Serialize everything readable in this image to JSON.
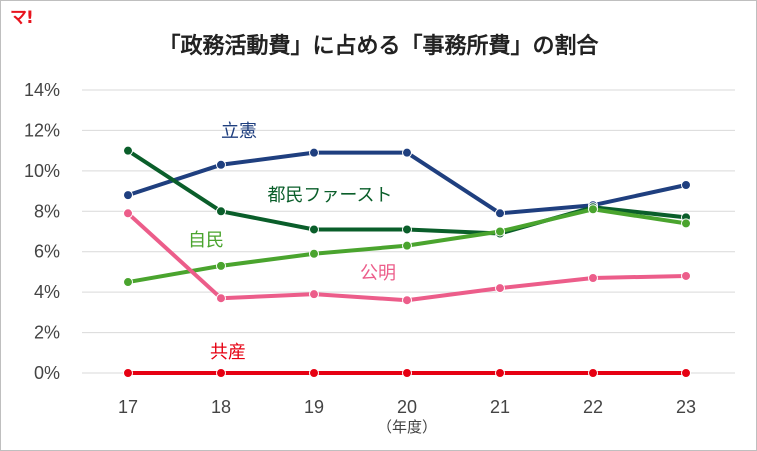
{
  "logo_text": "マ!",
  "chart_data": {
    "type": "line",
    "title": "「政務活動費」に占める「事務所費」の割合",
    "x": [
      "17",
      "18",
      "19",
      "20",
      "21",
      "22",
      "23"
    ],
    "xunit": "（年度）",
    "yticks": [
      "0%",
      "2%",
      "4%",
      "6%",
      "8%",
      "10%",
      "12%",
      "14%"
    ],
    "ylim": [
      0,
      14
    ],
    "grid": "horizontal",
    "series": [
      {
        "name": "立憲",
        "color": "#1f3f7f",
        "values": [
          8.8,
          10.3,
          10.9,
          10.9,
          7.9,
          8.3,
          9.3
        ]
      },
      {
        "name": "都民ファースト",
        "color": "#0a5e2a",
        "values": [
          11.0,
          8.0,
          7.1,
          7.1,
          6.9,
          8.2,
          7.7
        ]
      },
      {
        "name": "自民",
        "color": "#4aa42e",
        "values": [
          4.5,
          5.3,
          5.9,
          6.3,
          7.0,
          8.1,
          7.4
        ]
      },
      {
        "name": "公明",
        "color": "#ec5d8a",
        "values": [
          7.9,
          3.7,
          3.9,
          3.6,
          4.2,
          4.7,
          4.8
        ]
      },
      {
        "name": "共産",
        "color": "#e60012",
        "values": [
          0.0,
          0.0,
          0.0,
          0.0,
          0.0,
          0.0,
          0.0
        ]
      }
    ]
  }
}
